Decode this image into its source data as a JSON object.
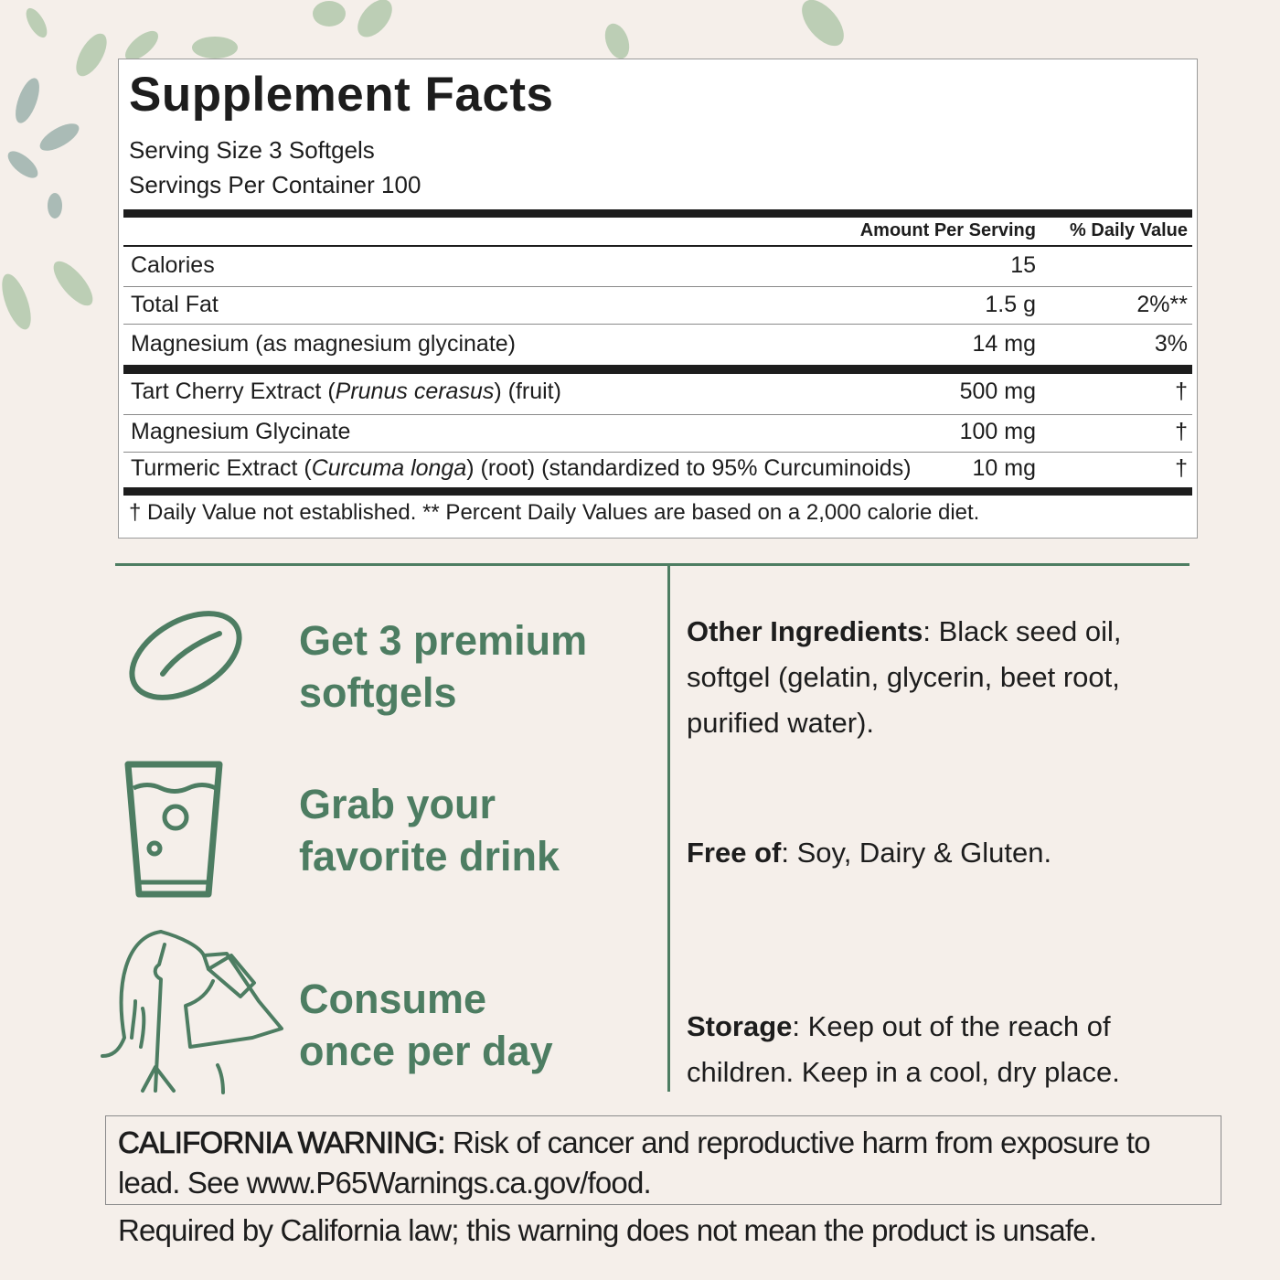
{
  "colors": {
    "background": "#f5efea",
    "accent_green": "#4d7d62",
    "text": "#1d1d1d"
  },
  "facts": {
    "title": "Supplement Facts",
    "serving_size": "Serving Size 3 Softgels",
    "servings_per_container": "Servings Per Container 100",
    "header": {
      "amount": "Amount Per Serving",
      "dv": "% Daily Value"
    },
    "rows": [
      {
        "name": "Calories",
        "amount": "15",
        "dv": ""
      },
      {
        "name": "Total Fat",
        "amount": "1.5 g",
        "dv": "2%**"
      },
      {
        "name": "Magnesium (as magnesium glycinate)",
        "amount": "14 mg",
        "dv": "3%"
      }
    ],
    "rows2": [
      {
        "name_pre": "Tart Cherry Extract (",
        "name_italic": "Prunus cerasus",
        "name_post": ") (fruit)",
        "amount": "500 mg",
        "dv": "†"
      },
      {
        "name_pre": "Magnesium Glycinate",
        "name_italic": "",
        "name_post": "",
        "amount": "100 mg",
        "dv": "†"
      },
      {
        "name_pre": "Turmeric Extract (",
        "name_italic": "Curcuma longa",
        "name_post": ") (root) (standardized to 95% Curcuminoids)",
        "amount": "10 mg",
        "dv": "†"
      }
    ],
    "footnote": "† Daily Value not established. ** Percent Daily Values are based on a 2,000 calorie diet."
  },
  "steps": [
    {
      "icon": "softgel-icon",
      "line1": "Get 3 premium",
      "line2": "softgels"
    },
    {
      "icon": "glass-icon",
      "line1": "Grab your",
      "line2": "favorite drink"
    },
    {
      "icon": "woman-drinking-icon",
      "line1": "Consume",
      "line2": "once per day"
    }
  ],
  "info": {
    "other_label": "Other Ingredients",
    "other_text": ": Black seed oil, softgel (gelatin, glycerin, beet root, purified water).",
    "free_label": "Free of",
    "free_text": ": Soy, Dairy & Gluten.",
    "storage_label": "Storage",
    "storage_text": ": Keep out of the reach of children. Keep in a cool, dry place."
  },
  "warning": {
    "label": "CALIFORNIA WARNING:",
    "text": " Risk of cancer and reproductive harm from exposure to lead. See www.P65Warnings.ca.gov/food."
  },
  "law_note": "Required by California law; this warning does not mean the product is unsafe."
}
